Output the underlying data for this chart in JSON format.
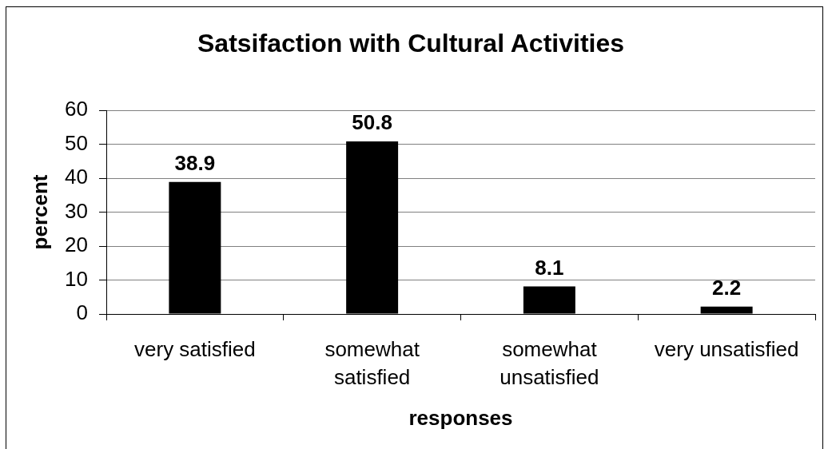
{
  "chart_data": {
    "type": "bar",
    "title": "Satsifaction with Cultural Activities",
    "xlabel": "responses",
    "ylabel": "percent",
    "categories": [
      "very satisfied",
      "somewhat satisfied",
      "somewhat unsatisfied",
      "very unsatisfied"
    ],
    "values": [
      38.9,
      50.8,
      8.1,
      2.2
    ],
    "color": "#000000",
    "ylim": [
      0,
      60
    ],
    "yticks": [
      0,
      10,
      20,
      30,
      40,
      50,
      60
    ],
    "grid": "y",
    "data_labels": true
  }
}
